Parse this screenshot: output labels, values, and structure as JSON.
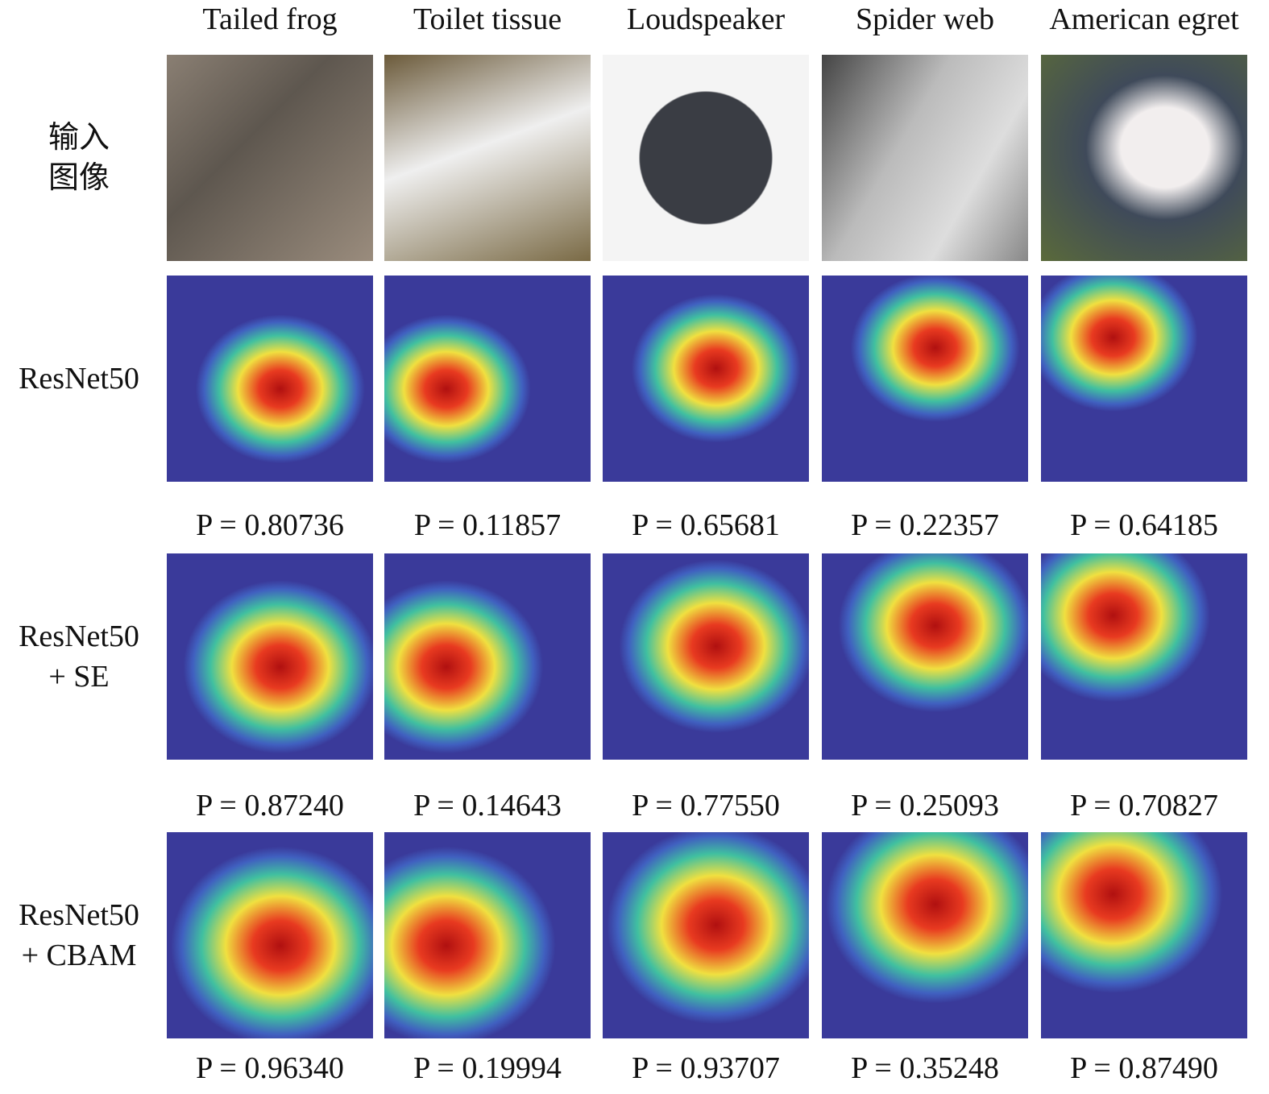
{
  "columns": [
    "Tailed frog",
    "Toilet tissue",
    "Loudspeaker",
    "Spider web",
    "American egret"
  ],
  "rows": [
    {
      "label_lines": [
        "输入",
        "图像"
      ]
    },
    {
      "label_lines": [
        "ResNet50"
      ],
      "probabilities": [
        "P = 0.80736",
        "P = 0.11857",
        "P = 0.65681",
        "P = 0.22357",
        "P = 0.64185"
      ]
    },
    {
      "label_lines": [
        "ResNet50",
        "+ SE"
      ],
      "probabilities": [
        "P = 0.87240",
        "P = 0.14643",
        "P = 0.77550",
        "P = 0.25093",
        "P = 0.70827"
      ]
    },
    {
      "label_lines": [
        "ResNet50",
        "+ CBAM"
      ],
      "probabilities": [
        "P = 0.96340",
        "P = 0.19994",
        "P = 0.93707",
        "P = 0.35248",
        "P = 0.87490"
      ]
    }
  ]
}
